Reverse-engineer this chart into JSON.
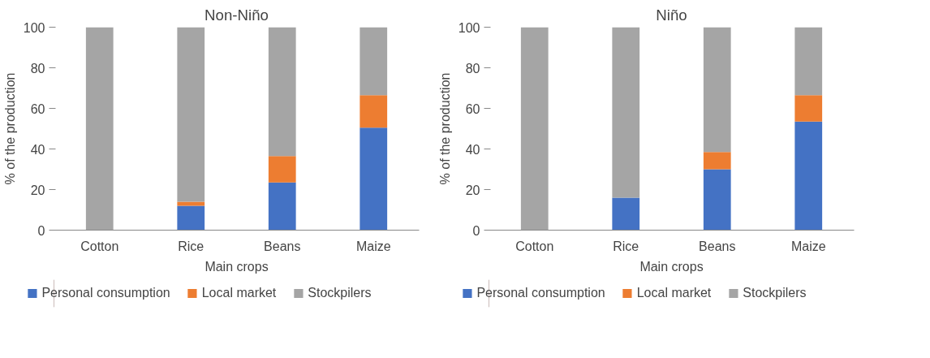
{
  "chart_data": [
    {
      "type": "bar",
      "stacked": true,
      "title": "Non-Niño",
      "xlabel": "Main crops",
      "ylabel": "% of the production",
      "categories": [
        "Cotton",
        "Rice",
        "Beans",
        "Maize"
      ],
      "ylim": [
        0,
        100
      ],
      "yticks": [
        0,
        20,
        40,
        60,
        80,
        100
      ],
      "grid": false,
      "legend": "bottom",
      "series": [
        {
          "name": "Personal consumption",
          "color": "#4472c4",
          "values": [
            0,
            12,
            23.5,
            50.5
          ]
        },
        {
          "name": "Local market",
          "color": "#ed7d31",
          "values": [
            0,
            2,
            13,
            16
          ]
        },
        {
          "name": "Stockpilers",
          "color": "#a5a5a5",
          "values": [
            100,
            86,
            63.5,
            33.5
          ]
        }
      ]
    },
    {
      "type": "bar",
      "stacked": true,
      "title": "Niño",
      "xlabel": "Main crops",
      "ylabel": "% of the production",
      "categories": [
        "Cotton",
        "Rice",
        "Beans",
        "Maize"
      ],
      "ylim": [
        0,
        100
      ],
      "yticks": [
        0,
        20,
        40,
        60,
        80,
        100
      ],
      "grid": false,
      "legend": "bottom",
      "series": [
        {
          "name": "Personal consumption",
          "color": "#4472c4",
          "values": [
            0,
            16,
            30,
            53.5
          ]
        },
        {
          "name": "Local market",
          "color": "#ed7d31",
          "values": [
            0,
            0,
            8.5,
            13
          ]
        },
        {
          "name": "Stockpilers",
          "color": "#a5a5a5",
          "values": [
            100,
            84,
            61.5,
            33.5
          ]
        }
      ]
    }
  ]
}
